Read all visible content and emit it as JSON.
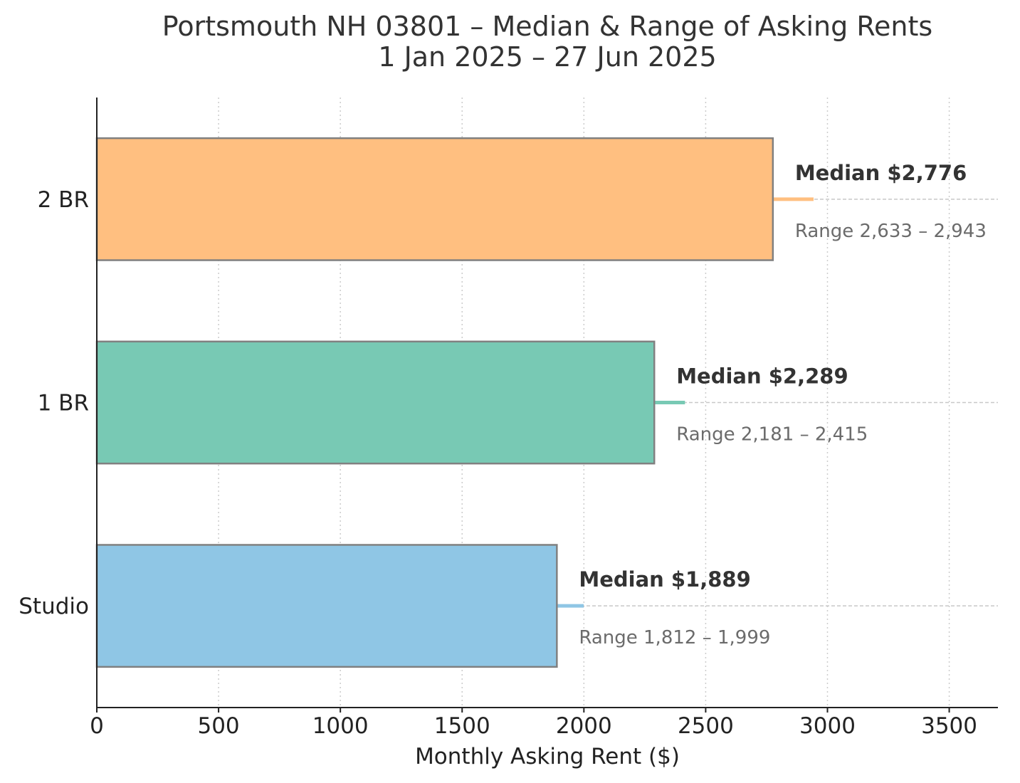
{
  "chart_data": {
    "type": "bar",
    "orientation": "horizontal",
    "title": "Portsmouth NH 03801 – Median & Range of Asking Rents",
    "subtitle": "1 Jan 2025 – 27 Jun 2025",
    "xlabel": "Monthly Asking Rent ($)",
    "ylabel": "",
    "xlim": [
      0,
      3700
    ],
    "xticks": [
      0,
      500,
      1000,
      1500,
      2000,
      2500,
      3000,
      3500
    ],
    "xtick_labels": [
      "0",
      "500",
      "1000",
      "1500",
      "2000",
      "2500",
      "3000",
      "3500"
    ],
    "grid": {
      "x": true,
      "y": false
    },
    "categories": [
      "2 BR",
      "1 BR",
      "Studio"
    ],
    "series": [
      {
        "values": [
          2776,
          2289,
          1889
        ],
        "range_low": [
          2633,
          2181,
          1812
        ],
        "range_high": [
          2943,
          2415,
          1999
        ],
        "colors": [
          "#ffbf80",
          "#78c9b4",
          "#8fc6e5"
        ]
      }
    ],
    "median_labels": [
      "Median  $2,776",
      "Median  $2,289",
      "Median  $1,889"
    ],
    "range_labels": [
      "Range  2,633 – 2,943",
      "Range  2,181 – 2,415",
      "Range  1,812 – 1,999"
    ],
    "colors": {
      "bar_edge": "#808080",
      "grid": "#cccccc",
      "axis": "#222222"
    }
  }
}
